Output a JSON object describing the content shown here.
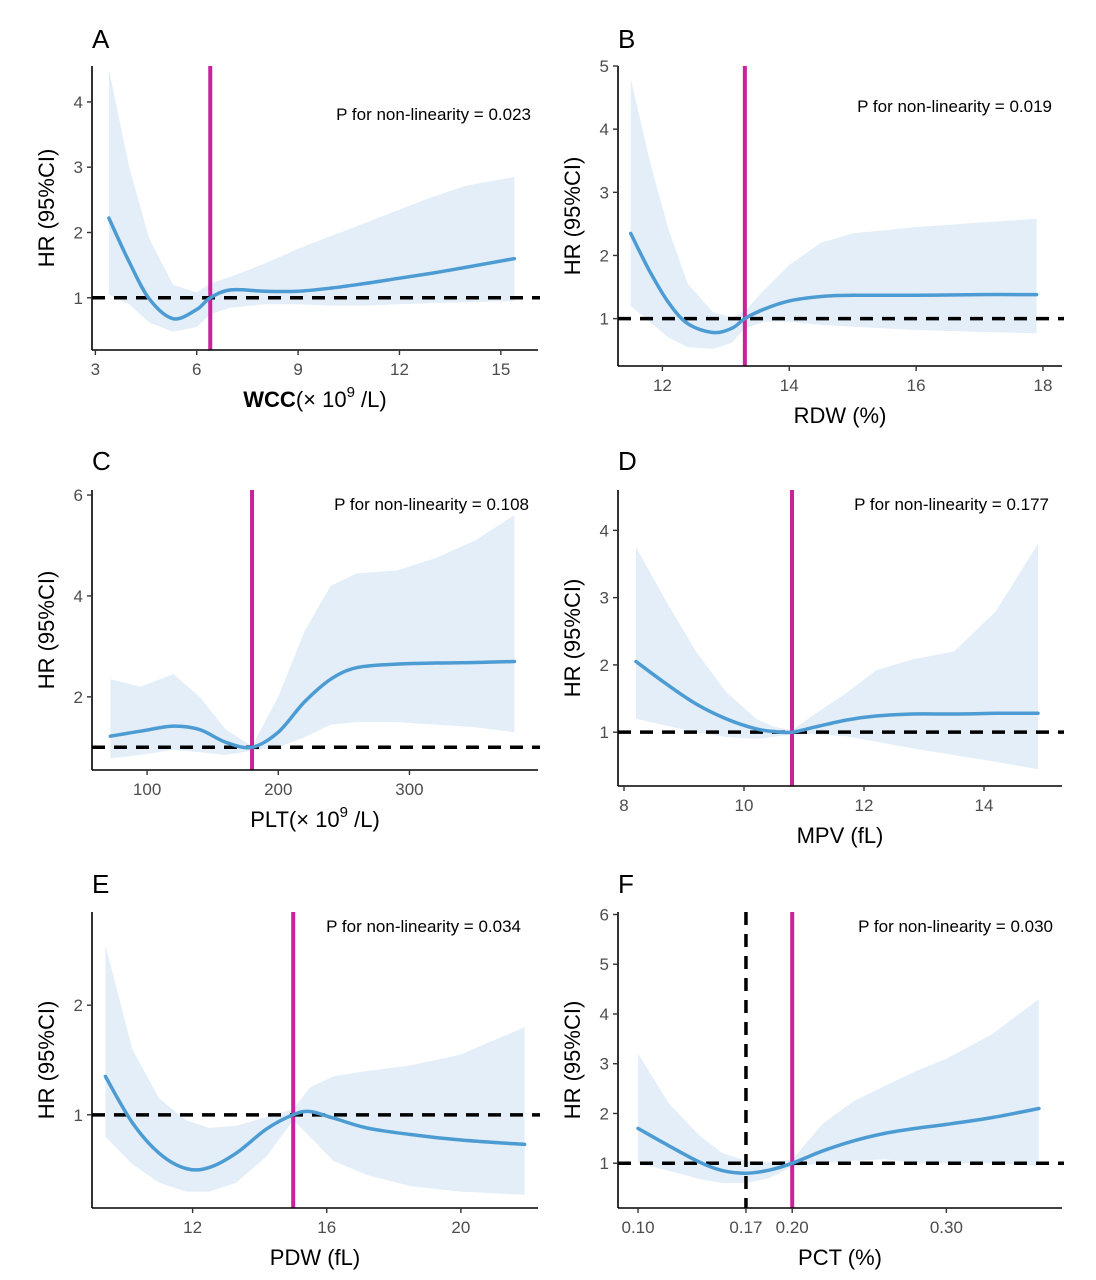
{
  "colors": {
    "curve": "#4d9bd3",
    "band": "#e3eef8",
    "cutoff": "#c9239a",
    "reference": "#000000"
  },
  "chart_data": [
    {
      "type": "line",
      "panel": "A",
      "xlabel_bold": "WCC",
      "xlabel_pre": "(× 10",
      "xlabel_sup": "9",
      "xlabel_post": " /L)",
      "ylabel": "HR (95%CI)",
      "annotation": "P for non-linearity = 0.023",
      "xlim": [
        2.9,
        16.1
      ],
      "ylim": [
        0.2,
        4.55
      ],
      "xticks": [
        3,
        6,
        9,
        12,
        15
      ],
      "xtick_labels": [
        "3",
        "6",
        "9",
        "12",
        "15"
      ],
      "yticks": [
        1,
        2,
        3,
        4
      ],
      "ytick_labels": [
        "1",
        "2",
        "3",
        "4"
      ],
      "reference_line_y": 1,
      "cutoff_x": 6.4,
      "series": [
        {
          "x": [
            3.4,
            4.0,
            4.6,
            5.3,
            6.0,
            6.4,
            7.0,
            8.0,
            9.0,
            10.0,
            11.0,
            12.0,
            13.0,
            14.0,
            15.4
          ],
          "y": [
            2.22,
            1.55,
            0.98,
            0.68,
            0.82,
            1.0,
            1.12,
            1.1,
            1.1,
            1.15,
            1.22,
            1.3,
            1.38,
            1.47,
            1.6
          ],
          "lower": [
            1.05,
            0.9,
            0.62,
            0.48,
            0.55,
            0.75,
            0.85,
            0.9,
            0.9,
            0.88,
            0.88,
            0.9,
            0.92,
            0.93,
            0.95
          ],
          "upper": [
            4.5,
            3.0,
            1.9,
            1.2,
            1.08,
            1.22,
            1.32,
            1.52,
            1.75,
            1.95,
            2.15,
            2.35,
            2.55,
            2.72,
            2.85
          ]
        }
      ]
    },
    {
      "type": "line",
      "panel": "B",
      "xlabel": "RDW (%)",
      "ylabel": "HR (95%CI)",
      "annotation": "P for non-linearity = 0.019",
      "xlim": [
        11.3,
        18.3
      ],
      "ylim": [
        0.25,
        5.0
      ],
      "xticks": [
        12,
        14,
        16,
        18
      ],
      "xtick_labels": [
        "12",
        "14",
        "16",
        "18"
      ],
      "yticks": [
        1,
        2,
        3,
        4,
        5
      ],
      "ytick_labels": [
        "1",
        "2",
        "3",
        "4",
        "5"
      ],
      "reference_line_y": 1,
      "cutoff_x": 13.3,
      "series": [
        {
          "x": [
            11.5,
            11.8,
            12.1,
            12.4,
            12.8,
            13.1,
            13.3,
            13.6,
            14.0,
            14.5,
            15.0,
            16.0,
            17.0,
            17.9
          ],
          "y": [
            2.35,
            1.75,
            1.25,
            0.92,
            0.78,
            0.85,
            1.0,
            1.15,
            1.28,
            1.35,
            1.37,
            1.37,
            1.38,
            1.38
          ],
          "lower": [
            1.2,
            0.95,
            0.7,
            0.55,
            0.52,
            0.62,
            0.85,
            0.95,
            0.95,
            0.9,
            0.87,
            0.82,
            0.79,
            0.77
          ],
          "upper": [
            4.8,
            3.5,
            2.4,
            1.55,
            1.1,
            1.02,
            1.12,
            1.45,
            1.85,
            2.2,
            2.35,
            2.45,
            2.52,
            2.58
          ]
        }
      ]
    },
    {
      "type": "line",
      "panel": "C",
      "xlabel_pre": "PLT(× 10",
      "xlabel_sup": "9",
      "xlabel_post": " /L)",
      "ylabel": "HR (95%CI)",
      "annotation": "P for non-linearity = 0.108",
      "xlim": [
        58,
        398
      ],
      "ylim": [
        0.55,
        6.1
      ],
      "xticks": [
        100,
        200,
        300
      ],
      "xtick_labels": [
        "100",
        "200",
        "300"
      ],
      "yticks": [
        2,
        4,
        6
      ],
      "ytick_labels": [
        "2",
        "4",
        "6"
      ],
      "reference_line_y": 1,
      "cutoff_x": 180,
      "series": [
        {
          "x": [
            72,
            95,
            120,
            140,
            160,
            180,
            200,
            220,
            240,
            260,
            290,
            320,
            350,
            380
          ],
          "y": [
            1.22,
            1.32,
            1.42,
            1.35,
            1.1,
            1.0,
            1.3,
            1.9,
            2.35,
            2.58,
            2.65,
            2.67,
            2.68,
            2.7
          ],
          "lower": [
            0.78,
            0.85,
            0.95,
            0.9,
            0.85,
            0.93,
            1.0,
            1.2,
            1.45,
            1.5,
            1.5,
            1.45,
            1.4,
            1.3
          ],
          "upper": [
            2.35,
            2.2,
            2.45,
            2.0,
            1.35,
            1.02,
            2.0,
            3.3,
            4.2,
            4.45,
            4.5,
            4.75,
            5.1,
            5.6
          ]
        }
      ]
    },
    {
      "type": "line",
      "panel": "D",
      "xlabel": "MPV (fL)",
      "ylabel": "HR (95%CI)",
      "annotation": "P for non-linearity = 0.177",
      "xlim": [
        7.9,
        15.3
      ],
      "ylim": [
        0.2,
        4.6
      ],
      "xticks": [
        8,
        10,
        12,
        14
      ],
      "xtick_labels": [
        "8",
        "10",
        "12",
        "14"
      ],
      "yticks": [
        1,
        2,
        3,
        4
      ],
      "ytick_labels": [
        "1",
        "2",
        "3",
        "4"
      ],
      "reference_line_y": 1,
      "cutoff_x": 10.8,
      "series": [
        {
          "x": [
            8.2,
            8.7,
            9.2,
            9.7,
            10.2,
            10.5,
            10.8,
            11.2,
            11.7,
            12.2,
            12.8,
            13.5,
            14.2,
            14.9
          ],
          "y": [
            2.05,
            1.72,
            1.42,
            1.2,
            1.05,
            1.01,
            1.0,
            1.08,
            1.18,
            1.24,
            1.27,
            1.27,
            1.28,
            1.28
          ],
          "lower": [
            1.2,
            1.1,
            1.0,
            0.93,
            0.9,
            0.93,
            0.97,
            0.97,
            0.94,
            0.86,
            0.76,
            0.66,
            0.56,
            0.45
          ],
          "upper": [
            3.75,
            2.95,
            2.2,
            1.6,
            1.2,
            1.08,
            1.03,
            1.28,
            1.58,
            1.92,
            2.08,
            2.2,
            2.8,
            3.8
          ]
        }
      ]
    },
    {
      "type": "line",
      "panel": "E",
      "xlabel": "PDW (fL)",
      "ylabel": "HR (95%CI)",
      "annotation": "P for non-linearity = 0.034",
      "xlim": [
        9.0,
        22.3
      ],
      "ylim": [
        0.15,
        2.85
      ],
      "xticks": [
        12,
        16,
        20
      ],
      "xtick_labels": [
        "12",
        "16",
        "20"
      ],
      "yticks": [
        1,
        2
      ],
      "ytick_labels": [
        "1",
        "2"
      ],
      "reference_line_y": 1,
      "cutoff_x": 15.0,
      "series": [
        {
          "x": [
            9.4,
            10.2,
            11.0,
            11.8,
            12.5,
            13.3,
            14.2,
            15.0,
            15.5,
            16.2,
            17.2,
            18.5,
            20.0,
            21.9
          ],
          "y": [
            1.35,
            0.93,
            0.65,
            0.51,
            0.52,
            0.65,
            0.87,
            1.0,
            1.03,
            0.97,
            0.88,
            0.82,
            0.77,
            0.73
          ],
          "lower": [
            0.8,
            0.55,
            0.38,
            0.3,
            0.3,
            0.38,
            0.62,
            0.95,
            0.8,
            0.58,
            0.45,
            0.35,
            0.3,
            0.27
          ],
          "upper": [
            2.55,
            1.6,
            1.15,
            0.95,
            0.88,
            0.9,
            0.98,
            1.05,
            1.25,
            1.35,
            1.4,
            1.45,
            1.55,
            1.8
          ]
        }
      ]
    },
    {
      "type": "line",
      "panel": "F",
      "xlabel": "PCT (%)",
      "ylabel": "HR (95%CI)",
      "annotation": "P for non-linearity = 0.030",
      "xlim": [
        0.087,
        0.375
      ],
      "ylim": [
        0.1,
        6.05
      ],
      "xticks": [
        0.1,
        0.17,
        0.2,
        0.3
      ],
      "xtick_labels": [
        "0.10",
        "0.17",
        "0.20",
        "0.30"
      ],
      "yticks": [
        1,
        2,
        3,
        4,
        5,
        6
      ],
      "ytick_labels": [
        "1",
        "2",
        "3",
        "4",
        "5",
        "6"
      ],
      "reference_line_y": 1,
      "cutoff_x": 0.2,
      "reference_line_x": 0.17,
      "series": [
        {
          "x": [
            0.1,
            0.12,
            0.14,
            0.155,
            0.17,
            0.185,
            0.2,
            0.22,
            0.24,
            0.26,
            0.28,
            0.3,
            0.33,
            0.36
          ],
          "y": [
            1.7,
            1.35,
            1.02,
            0.85,
            0.8,
            0.86,
            1.0,
            1.25,
            1.45,
            1.6,
            1.7,
            1.78,
            1.92,
            2.1
          ],
          "lower": [
            1.0,
            0.85,
            0.68,
            0.6,
            0.6,
            0.7,
            0.93,
            1.0,
            1.05,
            1.08,
            1.0,
            1.0,
            1.0,
            0.95
          ],
          "upper": [
            3.2,
            2.2,
            1.55,
            1.2,
            1.05,
            1.02,
            1.07,
            1.8,
            2.25,
            2.55,
            2.85,
            3.1,
            3.6,
            4.3
          ]
        }
      ]
    }
  ]
}
